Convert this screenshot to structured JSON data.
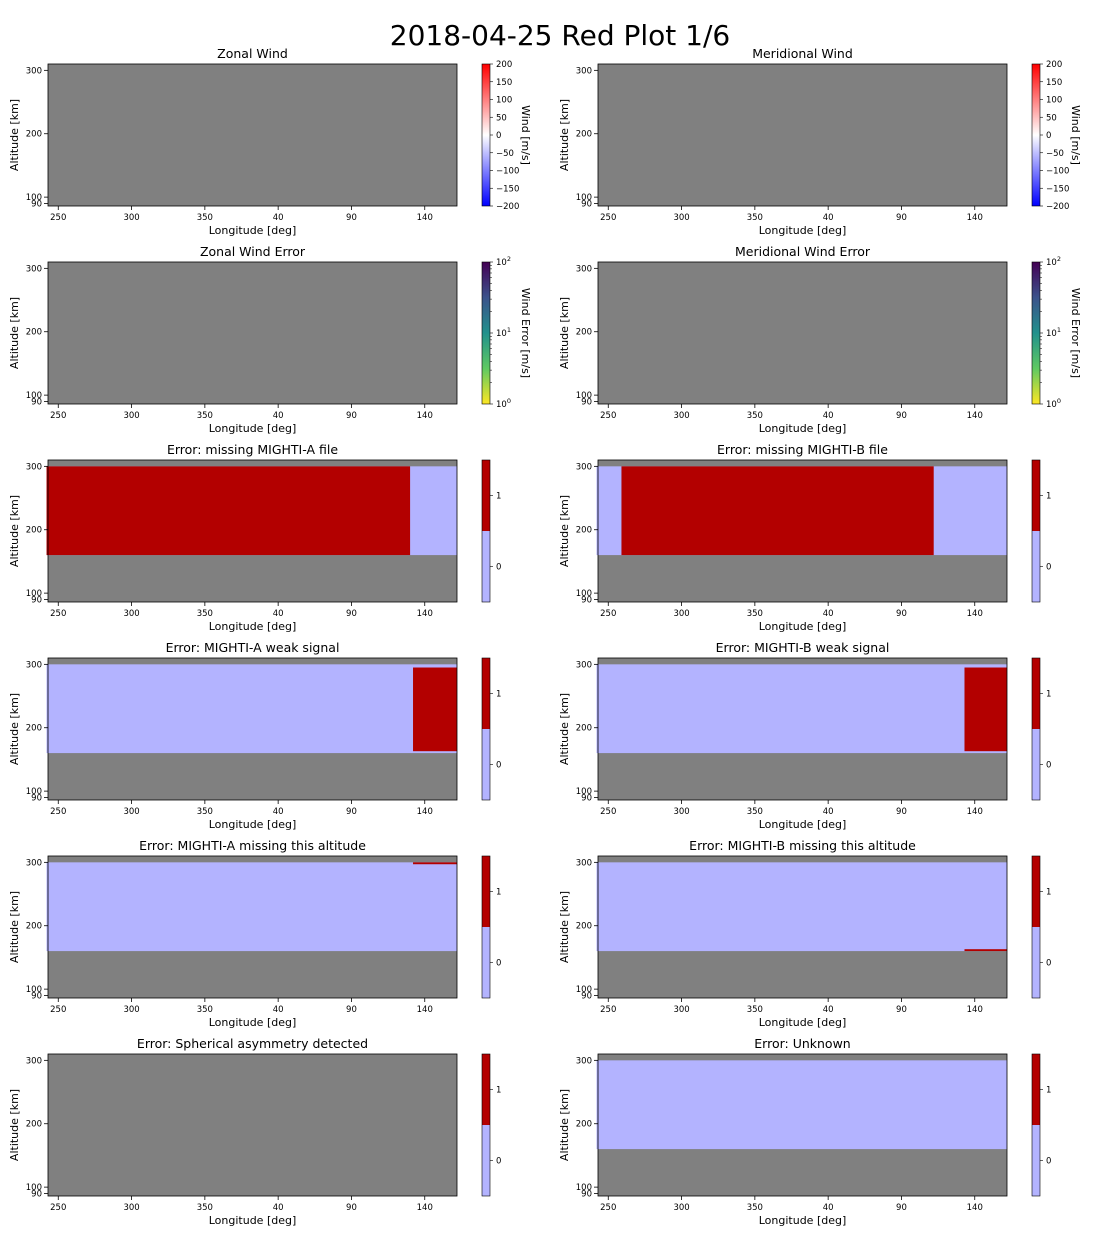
{
  "figure": {
    "title": "2018-04-25 Red Plot 1/6"
  },
  "colors": {
    "missing": "#808080",
    "flag_off": "#b3b3ff",
    "flag_on": "#b30000",
    "wind_colormap": [
      "#0000ff",
      "#ffffff",
      "#ff0000"
    ],
    "error_colormap": [
      "#440154",
      "#3b528b",
      "#21918c",
      "#5ec962",
      "#fde725"
    ]
  },
  "chart_data": [
    {
      "type": "heatmap",
      "title": "Zonal Wind",
      "xlabel": "Longitude [deg]",
      "ylabel": "Altitude [km]",
      "xticks": [
        "250",
        "300",
        "350",
        "40",
        "90",
        "140"
      ],
      "yticks": [
        "300",
        "200",
        "100",
        "90"
      ],
      "colorbar": {
        "kind": "wind",
        "label": "Wind [m/s]",
        "range": [
          -200,
          200
        ],
        "ticks": [
          "200",
          "150",
          "100",
          "50",
          "0",
          "−50",
          "−100",
          "−150",
          "−200"
        ]
      },
      "background": "missing",
      "regions": []
    },
    {
      "type": "heatmap",
      "title": "Meridional Wind",
      "xlabel": "Longitude [deg]",
      "ylabel": "Altitude [km]",
      "xticks": [
        "250",
        "300",
        "350",
        "40",
        "90",
        "140"
      ],
      "yticks": [
        "300",
        "200",
        "100",
        "90"
      ],
      "colorbar": {
        "kind": "wind",
        "label": "Wind [m/s]",
        "range": [
          -200,
          200
        ],
        "ticks": [
          "200",
          "150",
          "100",
          "50",
          "0",
          "−50",
          "−100",
          "−150",
          "−200"
        ]
      },
      "background": "missing",
      "regions": []
    },
    {
      "type": "heatmap",
      "title": "Zonal Wind Error",
      "xlabel": "Longitude [deg]",
      "ylabel": "Altitude [km]",
      "xticks": [
        "250",
        "300",
        "350",
        "40",
        "90",
        "140"
      ],
      "yticks": [
        "300",
        "200",
        "100",
        "90"
      ],
      "colorbar": {
        "kind": "error",
        "label": "Wind Error [m/s]",
        "scale": "log",
        "range": [
          1,
          100
        ],
        "ticks": [
          {
            "base": "10",
            "exp": "2"
          },
          {
            "base": "10",
            "exp": "1"
          },
          {
            "base": "10",
            "exp": "0"
          }
        ]
      },
      "background": "missing",
      "regions": []
    },
    {
      "type": "heatmap",
      "title": "Meridional Wind Error",
      "xlabel": "Longitude [deg]",
      "ylabel": "Altitude [km]",
      "xticks": [
        "250",
        "300",
        "350",
        "40",
        "90",
        "140"
      ],
      "yticks": [
        "300",
        "200",
        "100",
        "90"
      ],
      "colorbar": {
        "kind": "error",
        "label": "Wind Error [m/s]",
        "scale": "log",
        "range": [
          1,
          100
        ],
        "ticks": [
          {
            "base": "10",
            "exp": "2"
          },
          {
            "base": "10",
            "exp": "1"
          },
          {
            "base": "10",
            "exp": "0"
          }
        ]
      },
      "background": "missing",
      "regions": []
    },
    {
      "type": "heatmap",
      "title": "Error: missing MIGHTI-A file",
      "xlabel": "Longitude [deg]",
      "ylabel": "Altitude [km]",
      "xticks": [
        "250",
        "300",
        "350",
        "40",
        "90",
        "140"
      ],
      "yticks": [
        "300",
        "200",
        "100",
        "90"
      ],
      "colorbar": {
        "kind": "flag",
        "ticks": [
          "1",
          "0"
        ]
      },
      "background": "missing",
      "regions": [
        {
          "value": 0,
          "lon": [
            242,
            162
          ],
          "alt": [
            160,
            300
          ]
        },
        {
          "value": 1,
          "lon": [
            242,
            130
          ],
          "alt": [
            160,
            300
          ]
        }
      ]
    },
    {
      "type": "heatmap",
      "title": "Error: missing MIGHTI-B file",
      "xlabel": "Longitude [deg]",
      "ylabel": "Altitude [km]",
      "xticks": [
        "250",
        "300",
        "350",
        "40",
        "90",
        "140"
      ],
      "yticks": [
        "300",
        "200",
        "100",
        "90"
      ],
      "colorbar": {
        "kind": "flag",
        "ticks": [
          "1",
          "0"
        ]
      },
      "background": "missing",
      "regions": [
        {
          "value": 0,
          "lon": [
            242,
            162
          ],
          "alt": [
            160,
            300
          ]
        },
        {
          "value": 1,
          "lon": [
            259,
            112
          ],
          "alt": [
            160,
            300
          ]
        }
      ]
    },
    {
      "type": "heatmap",
      "title": "Error: MIGHTI-A weak signal",
      "xlabel": "Longitude [deg]",
      "ylabel": "Altitude [km]",
      "xticks": [
        "250",
        "300",
        "350",
        "40",
        "90",
        "140"
      ],
      "yticks": [
        "300",
        "200",
        "100",
        "90"
      ],
      "colorbar": {
        "kind": "flag",
        "ticks": [
          "1",
          "0"
        ]
      },
      "background": "missing",
      "regions": [
        {
          "value": 0,
          "lon": [
            242,
            162
          ],
          "alt": [
            160,
            300
          ]
        },
        {
          "value": 1,
          "lon": [
            132,
            162
          ],
          "alt": [
            163,
            295
          ]
        }
      ]
    },
    {
      "type": "heatmap",
      "title": "Error: MIGHTI-B weak signal",
      "xlabel": "Longitude [deg]",
      "ylabel": "Altitude [km]",
      "xticks": [
        "250",
        "300",
        "350",
        "40",
        "90",
        "140"
      ],
      "yticks": [
        "300",
        "200",
        "100",
        "90"
      ],
      "colorbar": {
        "kind": "flag",
        "ticks": [
          "1",
          "0"
        ]
      },
      "background": "missing",
      "regions": [
        {
          "value": 0,
          "lon": [
            242,
            162
          ],
          "alt": [
            160,
            300
          ]
        },
        {
          "value": 1,
          "lon": [
            133,
            162
          ],
          "alt": [
            163,
            295
          ]
        }
      ]
    },
    {
      "type": "heatmap",
      "title": "Error: MIGHTI-A missing this altitude",
      "xlabel": "Longitude [deg]",
      "ylabel": "Altitude [km]",
      "xticks": [
        "250",
        "300",
        "350",
        "40",
        "90",
        "140"
      ],
      "yticks": [
        "300",
        "200",
        "100",
        "90"
      ],
      "colorbar": {
        "kind": "flag",
        "ticks": [
          "1",
          "0"
        ]
      },
      "background": "missing",
      "regions": [
        {
          "value": 0,
          "lon": [
            242,
            162
          ],
          "alt": [
            160,
            300
          ]
        },
        {
          "value": 1,
          "lon": [
            132,
            162
          ],
          "alt": [
            297,
            300
          ]
        }
      ]
    },
    {
      "type": "heatmap",
      "title": "Error: MIGHTI-B missing this altitude",
      "xlabel": "Longitude [deg]",
      "ylabel": "Altitude [km]",
      "xticks": [
        "250",
        "300",
        "350",
        "40",
        "90",
        "140"
      ],
      "yticks": [
        "300",
        "200",
        "100",
        "90"
      ],
      "colorbar": {
        "kind": "flag",
        "ticks": [
          "1",
          "0"
        ]
      },
      "background": "missing",
      "regions": [
        {
          "value": 0,
          "lon": [
            242,
            162
          ],
          "alt": [
            160,
            300
          ]
        },
        {
          "value": 1,
          "lon": [
            133,
            162
          ],
          "alt": [
            160,
            163
          ]
        }
      ]
    },
    {
      "type": "heatmap",
      "title": "Error: Spherical asymmetry detected",
      "xlabel": "Longitude [deg]",
      "ylabel": "Altitude [km]",
      "xticks": [
        "250",
        "300",
        "350",
        "40",
        "90",
        "140"
      ],
      "yticks": [
        "300",
        "200",
        "100",
        "90"
      ],
      "colorbar": {
        "kind": "flag",
        "ticks": [
          "1",
          "0"
        ]
      },
      "background": "missing",
      "regions": []
    },
    {
      "type": "heatmap",
      "title": "Error: Unknown",
      "xlabel": "Longitude [deg]",
      "ylabel": "Altitude [km]",
      "xticks": [
        "250",
        "300",
        "350",
        "40",
        "90",
        "140"
      ],
      "yticks": [
        "300",
        "200",
        "100",
        "90"
      ],
      "colorbar": {
        "kind": "flag",
        "ticks": [
          "1",
          "0"
        ]
      },
      "background": "missing",
      "regions": [
        {
          "value": 0,
          "lon": [
            242,
            162
          ],
          "alt": [
            160,
            300
          ]
        }
      ]
    }
  ]
}
